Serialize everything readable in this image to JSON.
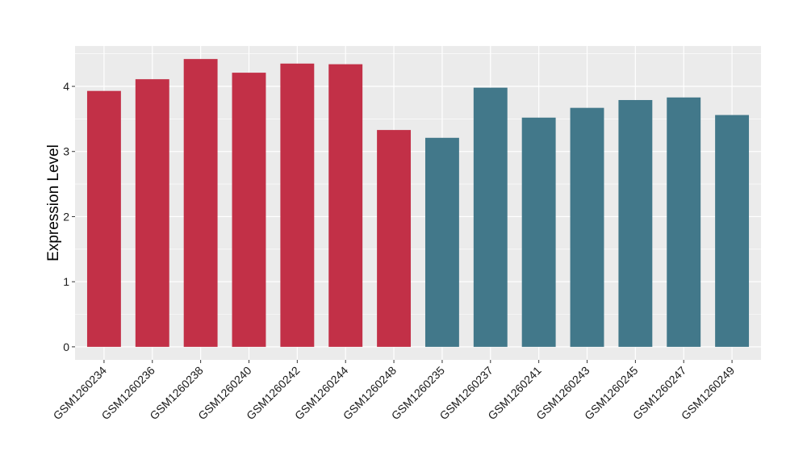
{
  "chart_data": {
    "type": "bar",
    "title": "",
    "xlabel": "",
    "ylabel": "Expression Level",
    "ylim": [
      -0.2,
      4.62
    ],
    "yticks": [
      0,
      1,
      2,
      3,
      4
    ],
    "categories": [
      "GSM1260234",
      "GSM1260236",
      "GSM1260238",
      "GSM1260240",
      "GSM1260242",
      "GSM1260244",
      "GSM1260248",
      "GSM1260235",
      "GSM1260237",
      "GSM1260241",
      "GSM1260243",
      "GSM1260245",
      "GSM1260247",
      "GSM1260249"
    ],
    "values": [
      3.93,
      4.11,
      4.42,
      4.21,
      4.35,
      4.34,
      3.33,
      3.21,
      3.98,
      3.52,
      3.67,
      3.79,
      3.83,
      3.56
    ],
    "groups": [
      0,
      0,
      0,
      0,
      0,
      0,
      0,
      1,
      1,
      1,
      1,
      1,
      1,
      1
    ],
    "group_colors": [
      "#c23047",
      "#42788a"
    ],
    "grid": true,
    "panel_background": "#ebebeb",
    "legend": "none"
  }
}
